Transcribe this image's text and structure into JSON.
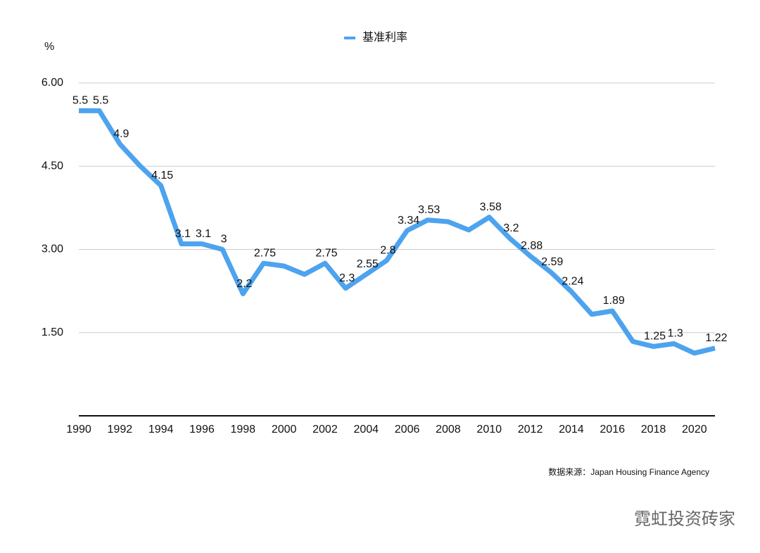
{
  "chart_data": {
    "type": "line",
    "y_label": "%",
    "source": "数据来源：Japan Housing Finance Agency",
    "watermark": "霓虹投资砖家",
    "x": [
      1990,
      1991,
      1992,
      1993,
      1994,
      1995,
      1996,
      1997,
      1998,
      1999,
      2000,
      2001,
      2002,
      2003,
      2004,
      2005,
      2006,
      2007,
      2008,
      2009,
      2010,
      2011,
      2012,
      2013,
      2014,
      2015,
      2016,
      2017,
      2018,
      2019,
      2020,
      2021
    ],
    "series": [
      {
        "name": "基准利率",
        "color": "#4da3ee",
        "values": [
          5.5,
          5.5,
          4.9,
          4.5,
          4.15,
          3.1,
          3.1,
          3,
          2.2,
          2.75,
          2.7,
          2.55,
          2.75,
          2.3,
          2.55,
          2.8,
          3.34,
          3.53,
          3.5,
          3.35,
          3.58,
          3.2,
          2.88,
          2.59,
          2.24,
          1.83,
          1.89,
          1.34,
          1.25,
          1.3,
          1.13,
          1.22
        ],
        "value_labels": [
          "5.5",
          "5.5",
          "4.9",
          null,
          "4.15",
          "3.1",
          "3.1",
          "3",
          "2.2",
          "2.75",
          null,
          null,
          "2.75",
          "2.3",
          "2.55",
          "2.8",
          "3.34",
          "3.53",
          null,
          null,
          "3.58",
          "3.2",
          "2.88",
          "2.59",
          "2.24",
          null,
          "1.89",
          null,
          "1.25",
          "1.3",
          null,
          "1.22"
        ]
      }
    ],
    "xlim": [
      1990,
      2021
    ],
    "xticks": [
      1990,
      1992,
      1994,
      1996,
      1998,
      2000,
      2002,
      2004,
      2006,
      2008,
      2010,
      2012,
      2014,
      2016,
      2018,
      2020
    ],
    "ylim": [
      0,
      6
    ],
    "yticks": [
      {
        "value": 1.5,
        "label": "1.50"
      },
      {
        "value": 3,
        "label": "3.00"
      },
      {
        "value": 4.5,
        "label": "4.50"
      },
      {
        "value": 6,
        "label": "6.00"
      }
    ],
    "grid": true
  }
}
